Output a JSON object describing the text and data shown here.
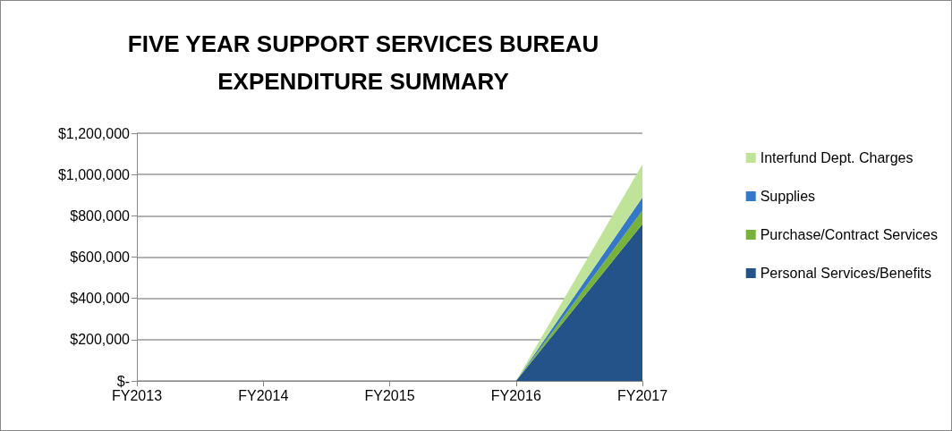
{
  "chart_data": {
    "type": "area",
    "stacked": true,
    "title": "FIVE YEAR SUPPORT SERVICES BUREAU\nEXPENDITURE SUMMARY",
    "categories": [
      "FY2013",
      "FY2014",
      "FY2015",
      "FY2016",
      "FY2017"
    ],
    "series": [
      {
        "name": "Personal Services/Benefits",
        "color": "#245389",
        "values": [
          0,
          0,
          0,
          0,
          760000
        ]
      },
      {
        "name": "Purchase/Contract Services",
        "color": "#77b33a",
        "values": [
          0,
          0,
          0,
          0,
          66000
        ]
      },
      {
        "name": "Supplies",
        "color": "#3678c8",
        "values": [
          0,
          0,
          0,
          0,
          63000
        ]
      },
      {
        "name": "Interfund Dept. Charges",
        "color": "#bfe399",
        "values": [
          0,
          0,
          0,
          0,
          161000
        ]
      }
    ],
    "ylim": [
      0,
      1200000
    ],
    "yticks": [
      {
        "value": 0,
        "label": "$-"
      },
      {
        "value": 200000,
        "label": "$200,000"
      },
      {
        "value": 400000,
        "label": "$400,000"
      },
      {
        "value": 600000,
        "label": "$600,000"
      },
      {
        "value": 800000,
        "label": "$800,000"
      },
      {
        "value": 1000000,
        "label": "$1,000,000"
      },
      {
        "value": 1200000,
        "label": "$1,200,000"
      }
    ],
    "grid": "y",
    "legend": "right"
  }
}
